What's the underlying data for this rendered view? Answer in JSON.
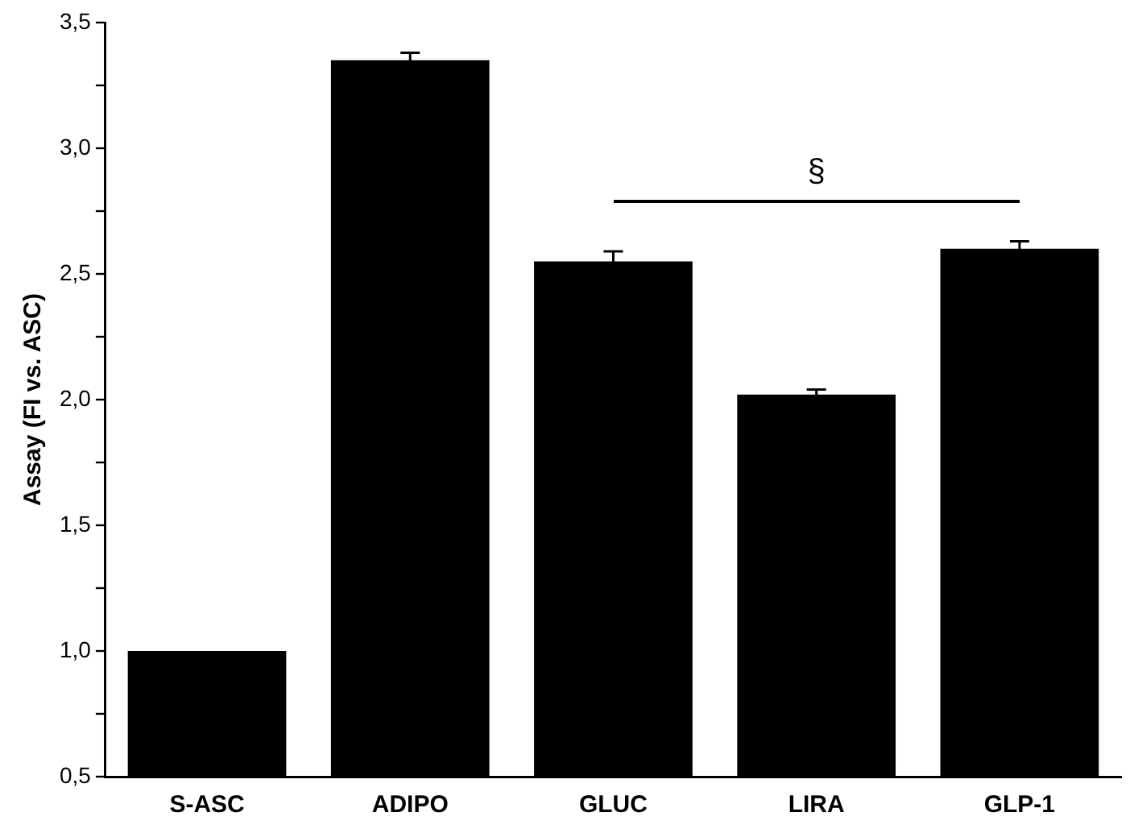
{
  "chart_data": {
    "type": "bar",
    "ylabel": "Assay (FI vs. ASC)",
    "categories": [
      "S-ASC",
      "ADIPO",
      "GLUC",
      "LIRA",
      "GLP-1"
    ],
    "values": [
      1.0,
      3.35,
      2.55,
      2.02,
      2.6
    ],
    "errors": [
      null,
      0.03,
      0.04,
      0.02,
      0.03
    ],
    "color": "#000000",
    "ylim": [
      0.5,
      3.5
    ],
    "yticks": [
      {
        "value": 0.5,
        "label": "0,5"
      },
      {
        "value": 0.75,
        "label": null
      },
      {
        "value": 1.0,
        "label": "1,0"
      },
      {
        "value": 1.25,
        "label": null
      },
      {
        "value": 1.5,
        "label": "1,5"
      },
      {
        "value": 1.75,
        "label": null
      },
      {
        "value": 2.0,
        "label": "2,0"
      },
      {
        "value": 2.25,
        "label": null
      },
      {
        "value": 2.5,
        "label": "2,5"
      },
      {
        "value": 2.75,
        "label": null
      },
      {
        "value": 3.0,
        "label": "3,0"
      },
      {
        "value": 3.25,
        "label": null
      },
      {
        "value": 3.5,
        "label": "3,5"
      }
    ],
    "annotations": [
      "§"
    ],
    "grid": false,
    "legend": false
  }
}
